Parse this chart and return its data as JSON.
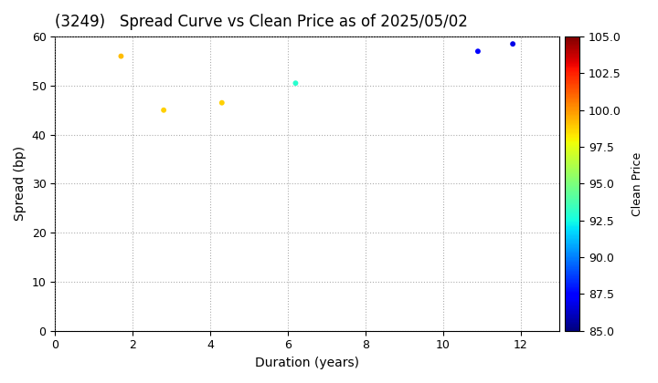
{
  "title": "(3249)   Spread Curve vs Clean Price as of 2025/05/02",
  "xlabel": "Duration (years)",
  "ylabel": "Spread (bp)",
  "colorbar_label": "Clean Price",
  "xlim": [
    0,
    13
  ],
  "ylim": [
    0,
    60
  ],
  "xticks": [
    0,
    2,
    4,
    6,
    8,
    10,
    12
  ],
  "yticks": [
    0,
    10,
    20,
    30,
    40,
    50,
    60
  ],
  "colorbar_min": 85.0,
  "colorbar_max": 105.0,
  "colorbar_ticks": [
    85.0,
    87.5,
    90.0,
    92.5,
    95.0,
    97.5,
    100.0,
    102.5,
    105.0
  ],
  "points": [
    {
      "duration": 1.7,
      "spread": 56,
      "clean_price": 99.2
    },
    {
      "duration": 2.8,
      "spread": 45,
      "clean_price": 98.8
    },
    {
      "duration": 4.3,
      "spread": 46.5,
      "clean_price": 98.8
    },
    {
      "duration": 6.2,
      "spread": 50.5,
      "clean_price": 93.0
    },
    {
      "duration": 10.9,
      "spread": 57,
      "clean_price": 87.2
    },
    {
      "duration": 11.8,
      "spread": 58.5,
      "clean_price": 86.8
    }
  ],
  "marker_size": 18,
  "background_color": "#ffffff",
  "grid_color": "#999999",
  "title_fontsize": 12,
  "label_fontsize": 10,
  "tick_fontsize": 9,
  "colorbar_fontsize": 9
}
